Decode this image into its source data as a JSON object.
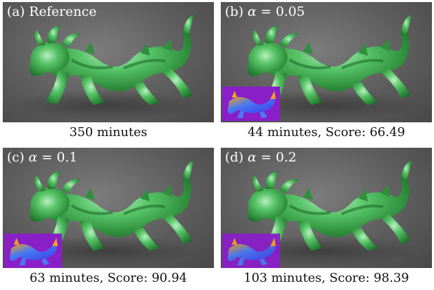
{
  "panels": [
    {
      "id": "a",
      "prefix": "(a) ",
      "label": "Reference",
      "caption": "350 minutes",
      "has_inset": false
    },
    {
      "id": "b",
      "prefix": "(b) ",
      "symbol": "α",
      "eq": " = 0.05",
      "caption": "44 minutes, Score: 66.49",
      "has_inset": true
    },
    {
      "id": "c",
      "prefix": "(c) ",
      "symbol": "α",
      "eq": " = 0.1",
      "caption": "63 minutes, Score: 90.94",
      "has_inset": true
    },
    {
      "id": "d",
      "prefix": "(d) ",
      "symbol": "α",
      "eq": " = 0.2",
      "caption": "103 minutes, Score: 98.39",
      "has_inset": true
    }
  ],
  "colors": {
    "background_gray": "#5d5d5d",
    "jade_green": "#3fae52",
    "inset_purple": "#8a1fc8",
    "heatmap_hot": "#f0a020",
    "heatmap_cool": "#3a3af0"
  }
}
